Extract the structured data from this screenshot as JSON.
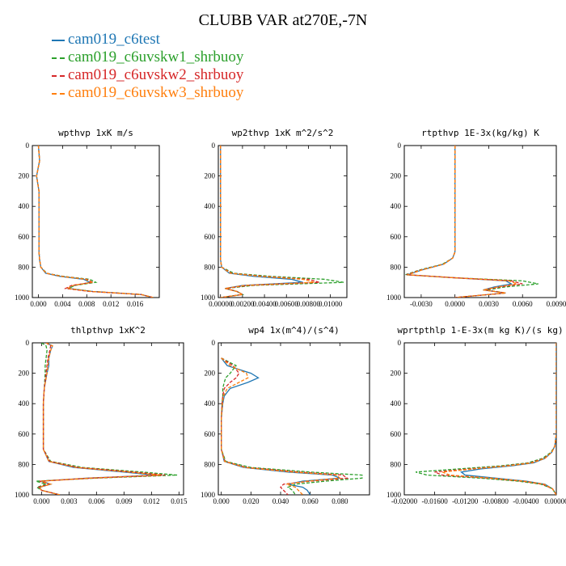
{
  "title": "CLUBB VAR at270E,-7N",
  "legend": [
    {
      "name": "cam019_c6test",
      "color": "#1f77b4",
      "dash": "solid"
    },
    {
      "name": "cam019_c6uvskw1_shrbuoy",
      "color": "#2ca02c",
      "dash": "dash"
    },
    {
      "name": "cam019_c6uvskw2_shrbuoy",
      "color": "#d62728",
      "dash": "dash"
    },
    {
      "name": "cam019_c6uvskw3_shrbuoy",
      "color": "#ff7f0e",
      "dash": "dash"
    }
  ],
  "chart_data": [
    {
      "type": "line",
      "title": "wpthvp  1xK m/s",
      "xlim": [
        -0.001,
        0.02
      ],
      "ylim": [
        1000,
        0
      ],
      "xticks": [
        0.0,
        0.004,
        0.008,
        0.012,
        0.016
      ],
      "xtick_labels": [
        "0.000",
        "0.004",
        "0.008",
        "0.012",
        "0.016"
      ],
      "yticks": [
        0,
        200,
        400,
        600,
        800,
        1000
      ],
      "ytick_labels": [
        "0",
        "200",
        "400",
        "600",
        "800",
        "1000"
      ],
      "y": [
        0,
        100,
        200,
        300,
        400,
        500,
        600,
        700,
        750,
        800,
        840,
        860,
        880,
        900,
        920,
        940,
        960,
        980,
        1000
      ],
      "series": [
        {
          "name": "cam019_c6test",
          "values": [
            0.0,
            0.0002,
            -0.0003,
            0.0001,
            0.0001,
            0.0001,
            0.0001,
            0.0001,
            0.0002,
            0.0004,
            0.0012,
            0.0035,
            0.0075,
            0.0085,
            0.006,
            0.005,
            0.009,
            0.017,
            0.019
          ]
        },
        {
          "name": "cam019_c6uvskw1_shrbuoy",
          "values": [
            0.0,
            0.0002,
            -0.0003,
            0.0001,
            0.0001,
            0.0001,
            0.0001,
            0.0001,
            0.0002,
            0.0004,
            0.0014,
            0.004,
            0.0085,
            0.0095,
            0.006,
            0.005,
            0.009,
            0.017,
            0.019
          ]
        },
        {
          "name": "cam019_c6uvskw2_shrbuoy",
          "values": [
            0.0,
            0.0002,
            -0.0003,
            0.0001,
            0.0001,
            0.0001,
            0.0001,
            0.0001,
            0.0002,
            0.0004,
            0.0013,
            0.0038,
            0.008,
            0.009,
            0.0055,
            0.0045,
            0.0085,
            0.017,
            0.019
          ]
        },
        {
          "name": "cam019_c6uvskw3_shrbuoy",
          "values": [
            0.0,
            0.0002,
            -0.0003,
            0.0001,
            0.0001,
            0.0001,
            0.0001,
            0.0001,
            0.0002,
            0.0004,
            0.0013,
            0.0037,
            0.0078,
            0.0088,
            0.0058,
            0.0048,
            0.0088,
            0.017,
            0.019
          ]
        }
      ]
    },
    {
      "type": "line",
      "title": "wp2thvp  1xK m^2/s^2",
      "xlim": [
        -0.0002,
        0.0115
      ],
      "ylim": [
        1000,
        0
      ],
      "xticks": [
        0.0,
        0.002,
        0.004,
        0.006,
        0.008,
        0.01
      ],
      "xtick_labels": [
        "0.00000",
        "0.00200",
        "0.00400",
        "0.00600",
        "0.00800",
        "0.01000"
      ],
      "yticks": [
        0,
        200,
        400,
        600,
        800,
        1000
      ],
      "ytick_labels": [
        "0",
        "200",
        "400",
        "600",
        "800",
        "1000"
      ],
      "y": [
        0,
        100,
        200,
        300,
        400,
        500,
        600,
        700,
        750,
        800,
        840,
        860,
        880,
        900,
        920,
        940,
        960,
        980,
        1000
      ],
      "series": [
        {
          "name": "cam019_c6test",
          "values": [
            0.0,
            0.0,
            0.0,
            0.0,
            0.0,
            0.0,
            0.0,
            0.0,
            0.0,
            0.0001,
            0.0008,
            0.003,
            0.0065,
            0.0075,
            0.002,
            0.0004,
            0.0015,
            0.002,
            0.0
          ]
        },
        {
          "name": "cam019_c6uvskw1_shrbuoy",
          "values": [
            0.0,
            0.0,
            0.0,
            0.0,
            0.0,
            0.0,
            0.0,
            0.0,
            0.0,
            0.0001,
            0.0012,
            0.0045,
            0.0095,
            0.0112,
            0.003,
            0.0005,
            0.0015,
            0.002,
            0.0
          ]
        },
        {
          "name": "cam019_c6uvskw2_shrbuoy",
          "values": [
            0.0,
            0.0,
            0.0,
            0.0,
            0.0,
            0.0,
            0.0,
            0.0,
            0.0,
            0.0001,
            0.001,
            0.0038,
            0.008,
            0.009,
            0.0025,
            0.0005,
            0.0015,
            0.002,
            0.0
          ]
        },
        {
          "name": "cam019_c6uvskw3_shrbuoy",
          "values": [
            0.0,
            0.0,
            0.0,
            0.0,
            0.0,
            0.0,
            0.0,
            0.0,
            0.0,
            0.0001,
            0.0009,
            0.0035,
            0.0075,
            0.0085,
            0.0022,
            0.0004,
            0.0015,
            0.002,
            0.0
          ]
        }
      ]
    },
    {
      "type": "line",
      "title": "rtpthvp  1E-3x(kg/kg) K",
      "xlim": [
        -0.0045,
        0.009
      ],
      "ylim": [
        1000,
        0
      ],
      "xticks": [
        -0.003,
        0.0,
        0.003,
        0.006,
        0.009
      ],
      "xtick_labels": [
        "-0.0030",
        "0.0000",
        "0.0030",
        "0.0060",
        "0.0090"
      ],
      "yticks": [
        0,
        200,
        400,
        600,
        800,
        1000
      ],
      "ytick_labels": [
        "0",
        "200",
        "400",
        "600",
        "800",
        "1000"
      ],
      "y": [
        0,
        100,
        200,
        300,
        400,
        500,
        600,
        700,
        740,
        780,
        820,
        850,
        870,
        890,
        910,
        930,
        950,
        970,
        1000
      ],
      "series": [
        {
          "name": "cam019_c6test",
          "values": [
            0.0,
            0.0,
            0.0,
            0.0,
            0.0,
            0.0,
            0.0,
            0.0,
            -0.0002,
            -0.001,
            -0.003,
            -0.0042,
            0.0,
            0.0045,
            0.005,
            0.0035,
            0.0025,
            0.0045,
            0.0
          ]
        },
        {
          "name": "cam019_c6uvskw1_shrbuoy",
          "values": [
            0.0,
            0.0,
            0.0,
            0.0,
            0.0,
            0.0,
            0.0,
            0.0,
            -0.0002,
            -0.0011,
            -0.0032,
            -0.0044,
            0.0,
            0.006,
            0.0074,
            0.0045,
            0.0028,
            0.0045,
            0.0
          ]
        },
        {
          "name": "cam019_c6uvskw2_shrbuoy",
          "values": [
            0.0,
            0.0,
            0.0,
            0.0,
            0.0,
            0.0,
            0.0,
            0.0,
            -0.0002,
            -0.001,
            -0.0031,
            -0.0043,
            0.0,
            0.005,
            0.006,
            0.004,
            0.0026,
            0.0045,
            0.0
          ]
        },
        {
          "name": "cam019_c6uvskw3_shrbuoy",
          "values": [
            0.0,
            0.0,
            0.0,
            0.0,
            0.0,
            0.0,
            0.0,
            0.0,
            -0.0002,
            -0.001,
            -0.003,
            -0.0042,
            0.0,
            0.0048,
            0.0055,
            0.0038,
            0.0025,
            0.0045,
            0.0
          ]
        }
      ]
    },
    {
      "type": "line",
      "title": "thlpthvp  1xK^2",
      "xlim": [
        -0.001,
        0.0155
      ],
      "ylim": [
        1000,
        0
      ],
      "xticks": [
        0.0,
        0.003,
        0.006,
        0.009,
        0.012,
        0.015
      ],
      "xtick_labels": [
        "0.000",
        "0.003",
        "0.006",
        "0.009",
        "0.012",
        "0.015"
      ],
      "yticks": [
        0,
        200,
        400,
        600,
        800,
        1000
      ],
      "ytick_labels": [
        "0",
        "200",
        "400",
        "600",
        "800",
        "1000"
      ],
      "y": [
        0,
        20,
        50,
        100,
        150,
        200,
        300,
        400,
        500,
        600,
        700,
        780,
        820,
        850,
        870,
        890,
        910,
        930,
        950,
        970,
        1000
      ],
      "series": [
        {
          "name": "cam019_c6test",
          "values": [
            0.0005,
            0.0012,
            0.001,
            0.0008,
            0.0008,
            0.0006,
            0.0003,
            0.0002,
            0.0002,
            0.0002,
            0.0002,
            0.0008,
            0.0035,
            0.009,
            0.0125,
            0.005,
            0.0,
            0.001,
            -0.0002,
            0.0,
            0.002
          ]
        },
        {
          "name": "cam019_c6uvskw1_shrbuoy",
          "values": [
            0.0,
            0.0005,
            0.0006,
            0.0005,
            0.0004,
            0.0004,
            0.0003,
            0.0002,
            0.0002,
            0.0002,
            0.0002,
            0.001,
            0.0045,
            0.011,
            0.0148,
            0.006,
            -0.0006,
            0.0005,
            -0.0005,
            0.0,
            0.002
          ]
        },
        {
          "name": "cam019_c6uvskw2_shrbuoy",
          "values": [
            0.0005,
            0.001,
            0.0009,
            0.0007,
            0.0006,
            0.0005,
            0.0003,
            0.0002,
            0.0002,
            0.0002,
            0.0002,
            0.0009,
            0.004,
            0.01,
            0.0135,
            0.0055,
            -0.0002,
            0.0008,
            -0.0003,
            0.0,
            0.002
          ]
        },
        {
          "name": "cam019_c6uvskw3_shrbuoy",
          "values": [
            0.0005,
            0.0012,
            0.001,
            0.0008,
            0.0007,
            0.0006,
            0.0003,
            0.0002,
            0.0002,
            0.0002,
            0.0002,
            0.0008,
            0.0038,
            0.0095,
            0.013,
            0.0052,
            0.0,
            0.001,
            -0.0002,
            0.0,
            0.002
          ]
        }
      ]
    },
    {
      "type": "line",
      "title": "wp4  1x(m^4)/(s^4)",
      "xlim": [
        -0.002,
        0.1
      ],
      "ylim": [
        1000,
        0
      ],
      "xticks": [
        0.0,
        0.02,
        0.04,
        0.06,
        0.08
      ],
      "xtick_labels": [
        "0.000",
        "0.020",
        "0.040",
        "0.060",
        "0.080"
      ],
      "yticks": [
        0,
        200,
        400,
        600,
        800,
        1000
      ],
      "ytick_labels": [
        "0",
        "200",
        "400",
        "600",
        "800",
        "1000"
      ],
      "y": [
        100,
        150,
        200,
        230,
        260,
        300,
        350,
        400,
        500,
        600,
        700,
        780,
        820,
        850,
        870,
        890,
        910,
        930,
        950,
        970,
        1000
      ],
      "series": [
        {
          "name": "cam019_c6test",
          "values": [
            0.0,
            0.004,
            0.02,
            0.025,
            0.018,
            0.006,
            0.002,
            0.001,
            0.0,
            0.0,
            0.0,
            0.002,
            0.015,
            0.045,
            0.075,
            0.08,
            0.055,
            0.045,
            0.055,
            0.058,
            0.06
          ]
        },
        {
          "name": "cam019_c6uvskw1_shrbuoy",
          "values": [
            0.0,
            0.01,
            0.006,
            0.003,
            0.002,
            0.001,
            0.001,
            0.0005,
            0.0,
            0.0,
            0.0,
            0.003,
            0.02,
            0.06,
            0.095,
            0.095,
            0.07,
            0.05,
            0.045,
            0.048,
            0.05
          ]
        },
        {
          "name": "cam019_c6uvskw2_shrbuoy",
          "values": [
            0.0,
            0.008,
            0.012,
            0.01,
            0.006,
            0.002,
            0.001,
            0.0005,
            0.0,
            0.0,
            0.0,
            0.0025,
            0.017,
            0.052,
            0.082,
            0.085,
            0.06,
            0.042,
            0.04,
            0.042,
            0.045
          ]
        },
        {
          "name": "cam019_c6uvskw3_shrbuoy",
          "values": [
            0.0,
            0.006,
            0.017,
            0.018,
            0.012,
            0.004,
            0.0015,
            0.0008,
            0.0,
            0.0,
            0.0,
            0.0022,
            0.016,
            0.048,
            0.078,
            0.08,
            0.058,
            0.044,
            0.05,
            0.052,
            0.055
          ]
        }
      ]
    },
    {
      "type": "line",
      "title": "wprtpthlp  1-E-3x(m kg K)/(s kg)",
      "xlim": [
        -0.02,
        0.0
      ],
      "ylim": [
        1000,
        0
      ],
      "xticks": [
        -0.02,
        -0.016,
        -0.012,
        -0.008,
        -0.004,
        0.0
      ],
      "xtick_labels": [
        "-0.02000",
        "-0.01600",
        "-0.01200",
        "-0.00800",
        "-0.00400",
        "0.00000"
      ],
      "yticks": [
        0,
        200,
        400,
        600,
        800,
        1000
      ],
      "ytick_labels": [
        "0",
        "200",
        "400",
        "600",
        "800",
        "1000"
      ],
      "y": [
        0,
        100,
        200,
        300,
        400,
        500,
        600,
        680,
        720,
        760,
        790,
        810,
        830,
        850,
        870,
        890,
        910,
        930,
        960,
        1000
      ],
      "series": [
        {
          "name": "cam019_c6test",
          "values": [
            0.0,
            0.0,
            0.0,
            0.0,
            0.0,
            0.0,
            0.0,
            -0.0002,
            -0.0006,
            -0.0015,
            -0.003,
            -0.006,
            -0.01,
            -0.0125,
            -0.012,
            -0.008,
            -0.004,
            -0.0015,
            -0.0005,
            0.0
          ]
        },
        {
          "name": "cam019_c6uvskw1_shrbuoy",
          "values": [
            0.0,
            0.0,
            0.0,
            0.0,
            0.0,
            0.0,
            0.0,
            -0.0002,
            -0.0007,
            -0.0018,
            -0.0038,
            -0.0075,
            -0.013,
            -0.0185,
            -0.017,
            -0.01,
            -0.005,
            -0.002,
            -0.0005,
            0.0
          ]
        },
        {
          "name": "cam019_c6uvskw2_shrbuoy",
          "values": [
            0.0,
            0.0,
            0.0,
            0.0,
            0.0,
            0.0,
            0.0,
            -0.0002,
            -0.0006,
            -0.0016,
            -0.0034,
            -0.0068,
            -0.0115,
            -0.016,
            -0.015,
            -0.009,
            -0.0045,
            -0.0018,
            -0.0005,
            0.0
          ]
        },
        {
          "name": "cam019_c6uvskw3_shrbuoy",
          "values": [
            0.0,
            0.0,
            0.0,
            0.0,
            0.0,
            0.0,
            0.0,
            -0.0002,
            -0.0006,
            -0.0015,
            -0.0032,
            -0.0064,
            -0.011,
            -0.015,
            -0.014,
            -0.0085,
            -0.0042,
            -0.0016,
            -0.0005,
            0.0
          ]
        }
      ]
    }
  ]
}
